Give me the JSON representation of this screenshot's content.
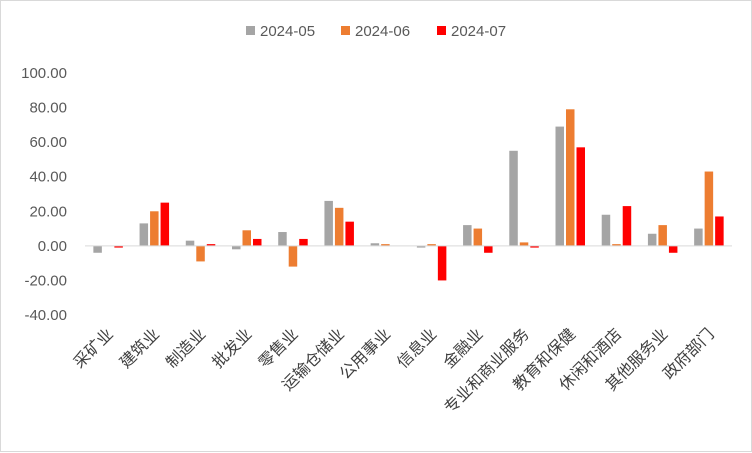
{
  "chart_data": {
    "type": "bar",
    "title": "",
    "xlabel": "",
    "ylabel": "",
    "ylim": [
      -40,
      100
    ],
    "yticks": [
      "100.00",
      "80.00",
      "60.00",
      "40.00",
      "20.00",
      "0.00",
      "-20.00",
      "-40.00"
    ],
    "legend_position": "top",
    "grid": false,
    "categories": [
      "采矿业",
      "建筑业",
      "制造业",
      "批发业",
      "零售业",
      "运输仓储业",
      "公用事业",
      "信息业",
      "金融业",
      "专业和商业服务",
      "教育和保健",
      "休闲和酒店",
      "其他服务业",
      "政府部门"
    ],
    "series": [
      {
        "name": "2024-05",
        "color": "#a5a5a5",
        "values": [
          -4,
          13,
          3,
          -2,
          8,
          26,
          1.5,
          -1,
          12,
          55,
          69,
          18,
          7,
          10
        ]
      },
      {
        "name": "2024-06",
        "color": "#ed7d31",
        "values": [
          0,
          20,
          -9,
          9,
          -12,
          22,
          1,
          1,
          10,
          2,
          79,
          1,
          12,
          43
        ]
      },
      {
        "name": "2024-07",
        "color": "#ff0000",
        "values": [
          -1,
          25,
          1,
          4,
          4,
          14,
          0,
          -20,
          -4,
          -1,
          57,
          23,
          -4,
          17
        ]
      }
    ]
  }
}
